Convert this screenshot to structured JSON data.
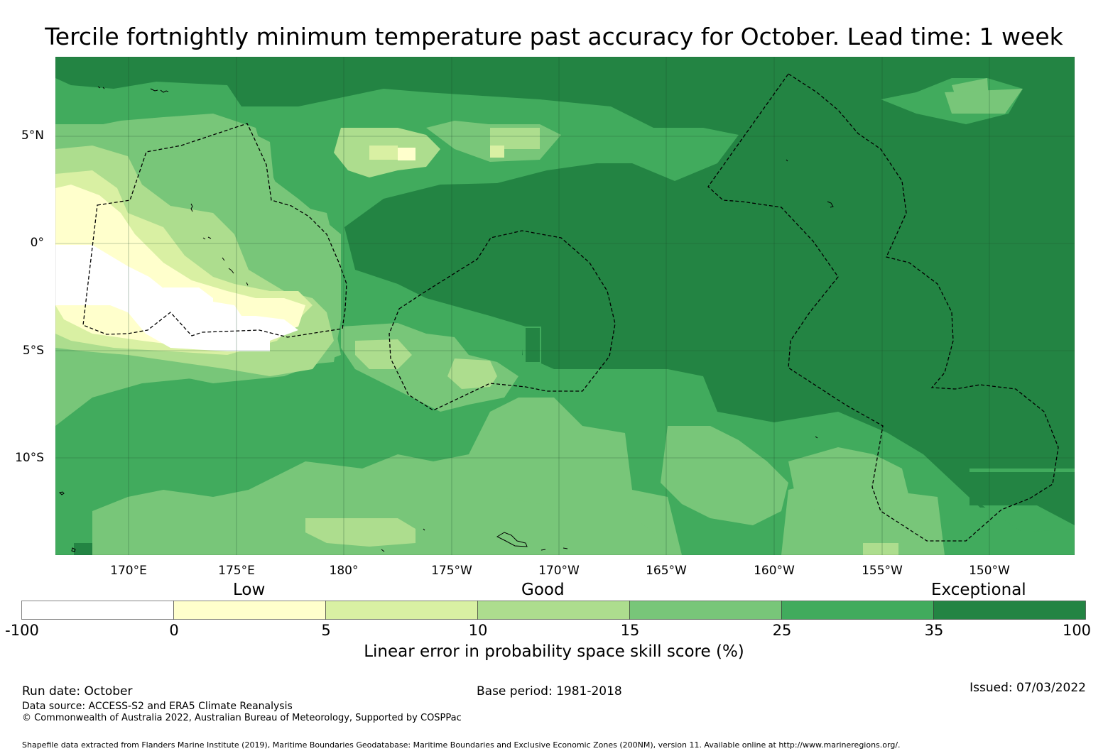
{
  "title": "Tercile fortnightly minimum temperature past accuracy for October. Lead time: 1 week",
  "map": {
    "lat_labels": [
      "5°N",
      "0°",
      "5°S",
      "10°S"
    ],
    "lon_labels": [
      "170°E",
      "175°E",
      "180°",
      "175°W",
      "170°W",
      "165°W",
      "160°W",
      "155°W",
      "150°W"
    ],
    "land_color": "#000000",
    "boundary_color": "#000000"
  },
  "colorbar": {
    "categories": [
      "Low",
      "Good",
      "Exceptional"
    ],
    "ticks": [
      "-100",
      "0",
      "5",
      "10",
      "15",
      "25",
      "35",
      "100"
    ],
    "colors": [
      "#ffffff",
      "#ffffcc",
      "#d9f0a3",
      "#addd8e",
      "#78c679",
      "#41ab5d",
      "#238443"
    ],
    "label": "Linear error in probability space skill score (%)"
  },
  "footer": {
    "run_date": "Run date: October",
    "base_period": "Base period: 1981-2018",
    "issued": "Issued: 07/03/2022",
    "data_source": "Data source: ACCESS-S2 and ERA5 Climate Reanalysis",
    "copyright": "© Commonwealth of Australia 2022, Australian Bureau of Meteorology, Supported by COSPPac",
    "shapefile": "Shapefile data extracted from Flanders Marine Institute (2019), Maritime Boundaries Geodatabase: Maritime Boundaries and Exclusive Economic Zones (200NM), version 11. Available online at http://www.marineregions.org/."
  }
}
